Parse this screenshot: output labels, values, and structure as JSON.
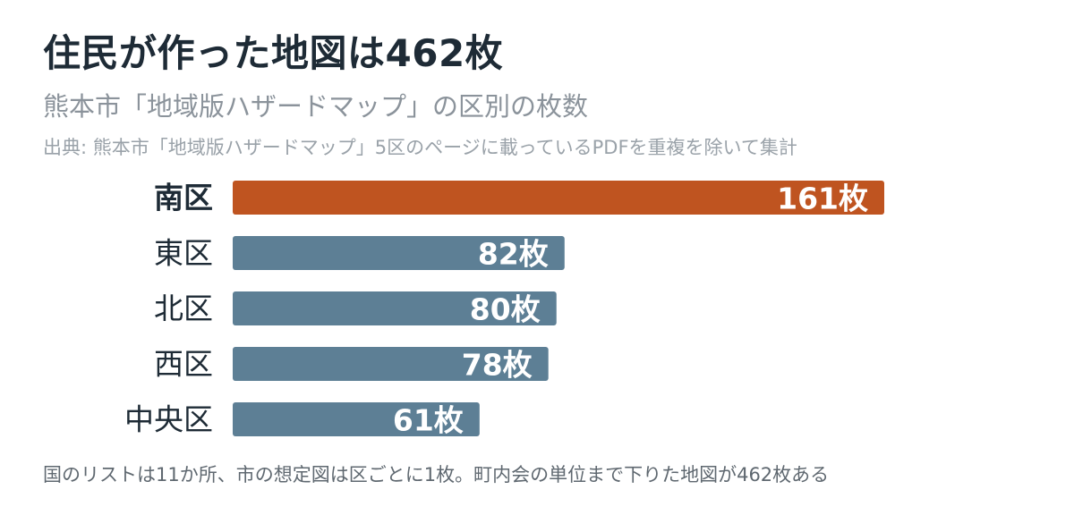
{
  "header": {
    "title": "住民が作った地図は462枚",
    "subtitle": "熊本市「地域版ハザードマップ」の区別の枚数",
    "source": "出典: 熊本市「地域版ハザードマップ」5区のページに載っているPDFを重複を除いて集計"
  },
  "footer": {
    "note": "国のリストは11か所、市の想定図は区ごとに1枚。町内会の単位まで下りた地図が462枚ある"
  },
  "colors": {
    "highlight": "#bf5420",
    "default": "#5d7f95"
  },
  "chart_data": {
    "type": "bar",
    "orientation": "horizontal",
    "categories": [
      "南区",
      "東区",
      "北区",
      "西区",
      "中央区"
    ],
    "values": [
      161,
      82,
      80,
      78,
      61
    ],
    "value_labels": [
      "161枚",
      "82枚",
      "80枚",
      "78枚",
      "61枚"
    ],
    "highlight_index": 0,
    "xlim": [
      0,
      161
    ],
    "grid": false,
    "legend": "none"
  }
}
